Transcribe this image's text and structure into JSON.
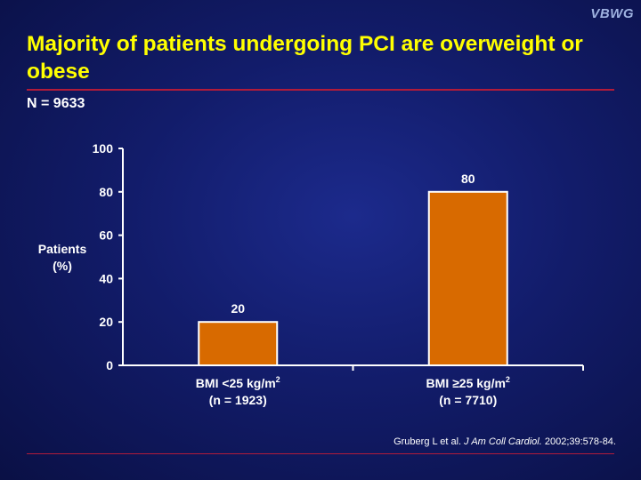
{
  "brand": "VBWG",
  "title": "Majority of patients undergoing PCI are overweight or obese",
  "subtitle": "N = 9633",
  "citation": {
    "authors": "Gruberg L et al.",
    "journal": "J Am Coll Cardiol.",
    "details": "2002;39:578-84."
  },
  "chart_data": {
    "type": "bar",
    "title": "",
    "ylabel": "Patients (%)",
    "xlabel": "",
    "ylim": [
      0,
      100
    ],
    "yticks": [
      0,
      20,
      40,
      60,
      80,
      100
    ],
    "grid": false,
    "legend": "none",
    "bar_color": "#d86a00",
    "categories": [
      {
        "label": "BMI <25 kg/m",
        "sup": "2",
        "sublabel": "(n = 1923)"
      },
      {
        "label": "BMI ≥25 kg/m",
        "sup": "2",
        "sublabel": "(n = 7710)"
      }
    ],
    "values": [
      20,
      80
    ],
    "data_labels": [
      "20",
      "80"
    ]
  }
}
